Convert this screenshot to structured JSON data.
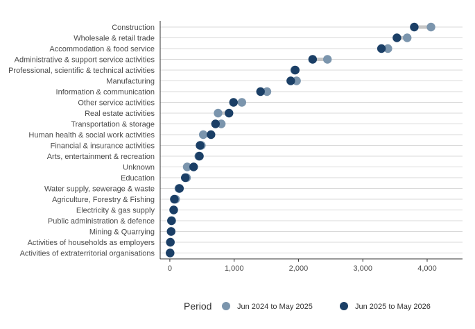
{
  "chart_data": {
    "type": "dumbbell",
    "categories": [
      "Construction",
      "Wholesale & retail trade",
      "Accommodation & food service",
      "Administrative & support service activities",
      "Professional, scientific & technical activities",
      "Manufacturing",
      "Information & communication",
      "Other service activities",
      "Real estate activities",
      "Transportation & storage",
      "Human health & social work activities",
      "Financial & insurance activities",
      "Arts, entertainment & recreation",
      "Unknown",
      "Education",
      "Water supply, sewerage & waste",
      "Agriculture, Forestry & Fishing",
      "Electricity & gas supply",
      "Public administration & defence",
      "Mining & Quarrying",
      "Activities of households as employers",
      "Activities of extraterritorial organisations"
    ],
    "series": [
      {
        "name": "Jun 2024 to May 2025",
        "color": "#7b95ad",
        "values": [
          4060,
          3690,
          3390,
          2450,
          1940,
          1970,
          1510,
          1120,
          750,
          800,
          520,
          490,
          450,
          270,
          260,
          140,
          90,
          60,
          30,
          20,
          10,
          5
        ]
      },
      {
        "name": "Jun 2025 to May 2026",
        "color": "#1b3f66",
        "values": [
          3800,
          3530,
          3290,
          2220,
          1950,
          1880,
          1410,
          990,
          920,
          710,
          640,
          470,
          460,
          370,
          240,
          150,
          70,
          60,
          25,
          20,
          8,
          4
        ]
      }
    ],
    "xlim": [
      -150,
      4550
    ],
    "xticks": [
      0,
      1000,
      2000,
      3000,
      4000
    ],
    "xtick_labels": [
      "0",
      "1,000",
      "2,000",
      "3,000",
      "4,000"
    ],
    "grid": "horizontal",
    "legend": {
      "title": "Period",
      "position": "bottom"
    },
    "title": "",
    "xlabel": "",
    "ylabel": ""
  }
}
